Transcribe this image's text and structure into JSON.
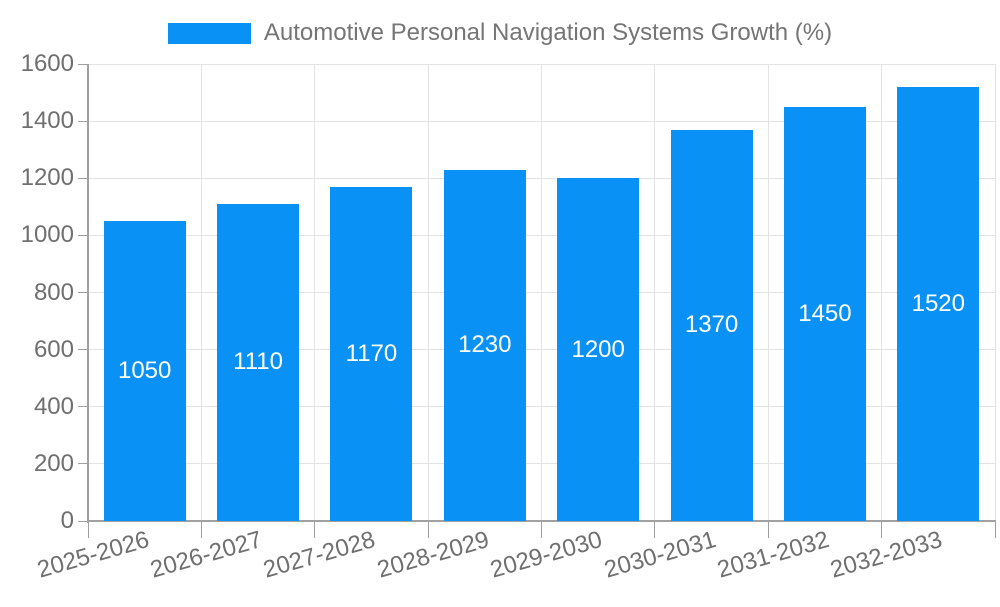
{
  "legend": {
    "swatch_color": "#0a91f5",
    "label": "Automotive Personal Navigation Systems Growth (%)"
  },
  "chart_data": {
    "type": "bar",
    "title": "Automotive Personal Navigation Systems Growth (%)",
    "categories": [
      "2025-2026",
      "2026-2027",
      "2027-2028",
      "2028-2029",
      "2029-2030",
      "2030-2031",
      "2031-2032",
      "2032-2033"
    ],
    "values": [
      1050,
      1110,
      1170,
      1230,
      1200,
      1370,
      1450,
      1520
    ],
    "xlabel": "",
    "ylabel": "",
    "ylim": [
      0,
      1600
    ],
    "ytick_step": 200,
    "yticks": [
      0,
      200,
      400,
      600,
      800,
      1000,
      1200,
      1400,
      1600
    ],
    "grid": true,
    "legend_position": "top-center",
    "x_label_rotation_deg": -16,
    "colors": {
      "bar": "#0a91f5",
      "value_label": "#ffffff",
      "axis_text": "#6f6f6f",
      "grid_line": "#e3e3e3",
      "axis_line": "#a0a0a0",
      "legend_text": "#757575",
      "background": "#ffffff"
    }
  }
}
